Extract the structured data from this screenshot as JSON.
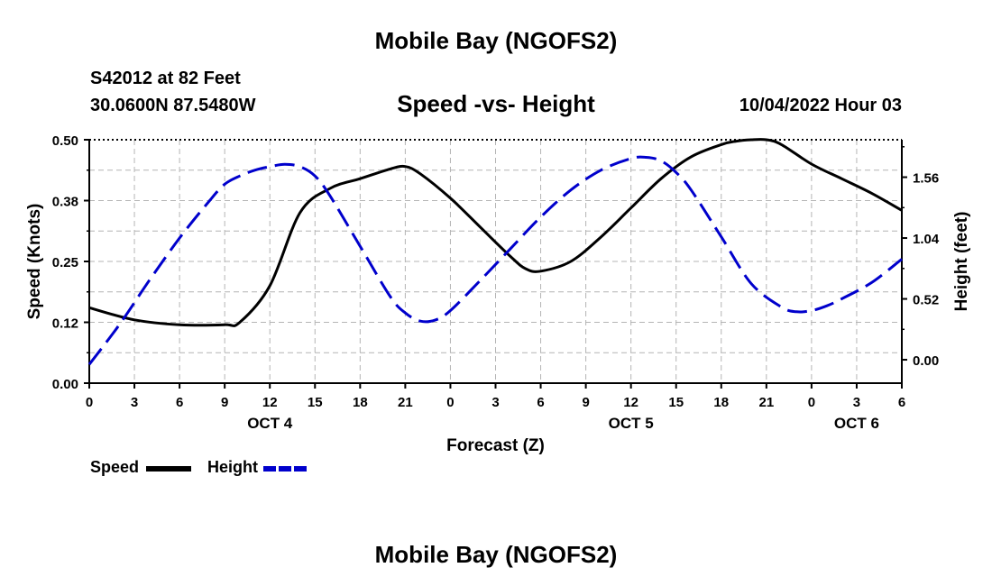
{
  "header": {
    "title": "Mobile Bay (NGOFS2)",
    "station": "S42012 at 82 Feet",
    "coords": "30.0600N  87.5480W",
    "datetime": "10/04/2022 Hour 03"
  },
  "footer": {
    "title": "Mobile Bay (NGOFS2)"
  },
  "legend": {
    "speed_label": "Speed",
    "height_label": "Height"
  },
  "chart_data": {
    "type": "line",
    "title": "Speed -vs- Height",
    "xlabel": "Forecast (Z)",
    "ylabel": "Speed (Knots)",
    "y2label": "Height (feet)",
    "x_ticks": [
      "0",
      "3",
      "6",
      "9",
      "12",
      "15",
      "18",
      "21",
      "0",
      "3",
      "6",
      "9",
      "12",
      "15",
      "18",
      "21",
      "0",
      "3",
      "6"
    ],
    "day_labels": [
      {
        "label": "OCT 4",
        "hour": 12
      },
      {
        "label": "OCT 5",
        "hour": 36
      },
      {
        "label": "OCT 6",
        "hour": 51
      }
    ],
    "xlim": [
      0,
      54
    ],
    "ylim": [
      0,
      0.5
    ],
    "y_ticks": [
      "0.00",
      "0.12",
      "0.25",
      "0.38",
      "0.50"
    ],
    "y_tick_values": [
      0,
      0.125,
      0.25,
      0.375,
      0.5
    ],
    "y2lim": [
      -0.2,
      1.88
    ],
    "y2_ticks": [
      "0.00",
      "0.52",
      "1.04",
      "1.56"
    ],
    "y2_tick_values": [
      0,
      0.52,
      1.04,
      1.56
    ],
    "grid": true,
    "series": [
      {
        "name": "Speed",
        "axis": "left",
        "color": "#000000",
        "style": "solid",
        "x": [
          0,
          3,
          6,
          9,
          10,
          12,
          14,
          16,
          18,
          20,
          21,
          22,
          24,
          26,
          28,
          29,
          30,
          32,
          34,
          36,
          38,
          40,
          42,
          43,
          44,
          45,
          46,
          48,
          50,
          52,
          54
        ],
        "values": [
          0.155,
          0.13,
          0.12,
          0.12,
          0.125,
          0.2,
          0.35,
          0.4,
          0.42,
          0.44,
          0.445,
          0.43,
          0.38,
          0.32,
          0.26,
          0.235,
          0.23,
          0.25,
          0.3,
          0.36,
          0.42,
          0.465,
          0.49,
          0.497,
          0.5,
          0.5,
          0.49,
          0.45,
          0.42,
          0.39,
          0.355
        ]
      },
      {
        "name": "Height",
        "axis": "right",
        "color": "#0000cc",
        "style": "dashed",
        "x": [
          0,
          2,
          4,
          6,
          8,
          9,
          10,
          11,
          12,
          13,
          14,
          15,
          16,
          18,
          20,
          21,
          22,
          23,
          24,
          26,
          28,
          30,
          32,
          34,
          36,
          37,
          38,
          39,
          40,
          42,
          44,
          46,
          47,
          48,
          49,
          50,
          52,
          54
        ],
        "values": [
          -0.04,
          0.3,
          0.68,
          1.04,
          1.36,
          1.5,
          1.57,
          1.62,
          1.65,
          1.67,
          1.65,
          1.57,
          1.4,
          0.97,
          0.54,
          0.4,
          0.33,
          0.34,
          0.42,
          0.68,
          0.95,
          1.22,
          1.45,
          1.62,
          1.72,
          1.73,
          1.7,
          1.6,
          1.45,
          1.05,
          0.65,
          0.45,
          0.41,
          0.42,
          0.46,
          0.52,
          0.66,
          0.86
        ]
      }
    ]
  }
}
